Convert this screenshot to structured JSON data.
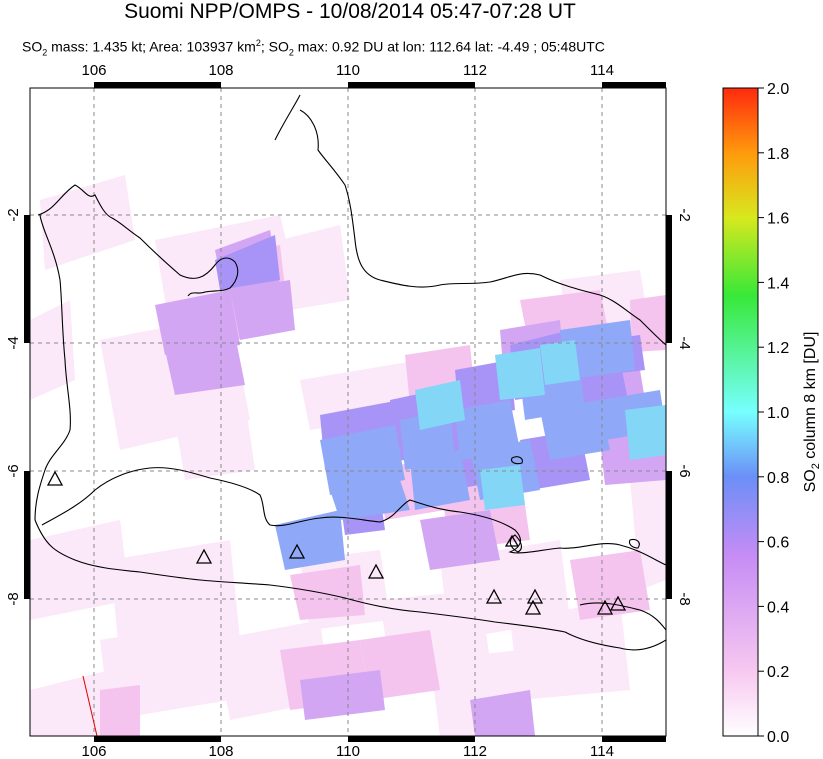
{
  "header": {
    "title": "Suomi NPP/OMPS - 10/08/2014 05:47-07:28 UT",
    "mass_prefix": "SO",
    "mass_sub": "2",
    "mass_text": " mass: 1.435 kt; Area: 103937 km",
    "area_sup": "2",
    "max_prefix": "; SO",
    "max_sub": "2",
    "max_text": " max: 0.92 DU at lon: 112.64 lat: -4.49 ; 05:48UTC"
  },
  "map": {
    "lon_labels": [
      "106",
      "108",
      "110",
      "112",
      "114"
    ],
    "lat_labels_left": [
      "-2",
      "-4",
      "-6",
      "-8"
    ],
    "lat_labels_right": [
      "-2",
      "-4",
      "-6",
      "-8"
    ],
    "volcano_count": 10
  },
  "colorbar": {
    "label_parts": [
      "SO",
      "2",
      " column 8 km [DU]"
    ],
    "ticks": [
      "2.0",
      "1.8",
      "1.6",
      "1.4",
      "1.2",
      "1.0",
      "0.8",
      "0.6",
      "0.4",
      "0.2",
      "0.0"
    ],
    "stops": [
      "#ffffff",
      "#f7c8f0",
      "#c58cf5",
      "#6b8ff7",
      "#77ffff",
      "#38e838",
      "#d8e81e",
      "#ff9a0d",
      "#ff2a0d"
    ]
  }
}
